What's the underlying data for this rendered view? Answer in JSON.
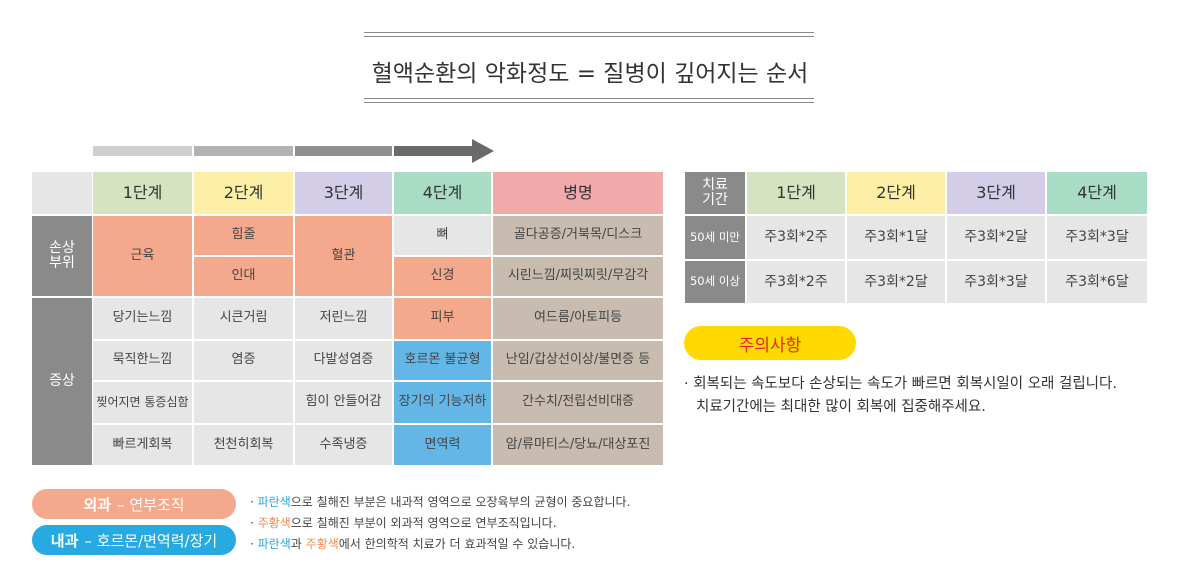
{
  "title": "혈액순환의 악화정도 = 질병이 깊어지는 순서",
  "left_table": {
    "stages": [
      "1단계",
      "2단계",
      "3단계",
      "4단계",
      "병명"
    ],
    "side": {
      "injury": "손상\n부위",
      "symptom": "증상"
    },
    "injury": {
      "muscle": "근육",
      "tendon": "힘줄",
      "ligament": "인대",
      "vessel": "혈관",
      "bone": "뼈",
      "nerve": "신경",
      "disease_1": "골다공증/거북목/디스크",
      "disease_2": "시린느낌/찌릿찌릿/무감각"
    },
    "rows": [
      [
        "당기는느낌",
        "시큰거림",
        "저린느낌",
        "피부",
        "여드름/아토피등"
      ],
      [
        "묵직한느낌",
        "염증",
        "다발성염증",
        "호르몬 불균형",
        "난임/갑상선이상/불면증 등"
      ],
      [
        "찢어지면 통증심함",
        "",
        "힘이 안들어감",
        "장기의 기능저하",
        "간수치/전립선비대증"
      ],
      [
        "빠르게회복",
        "천천히회복",
        "수족냉증",
        "면역력",
        "암/류마티스/당뇨/대상포진"
      ]
    ]
  },
  "right_table": {
    "header": [
      "치료\n기간",
      "1단계",
      "2단계",
      "3단계",
      "4단계"
    ],
    "rows": [
      [
        "50세 미만",
        "주3회*2주",
        "주3회*1달",
        "주3회*2달",
        "주3회*3달"
      ],
      [
        "50세 이상",
        "주3회*2주",
        "주3회*2달",
        "주3회*3달",
        "주3회*6달"
      ]
    ]
  },
  "notice": {
    "title": "주의사항",
    "line1": "· 회복되는 속도보다 손상되는 속도가 빠르면 회복시일이 오래 걸립니다.",
    "line2": "치료기간에는 최대한 많이 회복에 집중해주세요."
  },
  "legend": {
    "surgery_bold": "외과",
    "surgery_rest": "– 연부조직",
    "internal_bold": "내과",
    "internal_rest": "– 호르몬/면역력/장기",
    "note1_pre": "· ",
    "note1_blue": "파란색",
    "note1_post": "으로 칠해진 부분은 내과적 영역으로 오장육부의 균형이 중요합니다.",
    "note2_pre": "· ",
    "note2_orange": "주황색",
    "note2_post": "으로 칠해진 부분이 외과적 영역으로 연부조직입니다.",
    "note3_pre": "· ",
    "note3_blue": "파란색",
    "note3_mid": "과 ",
    "note3_orange": "주황색",
    "note3_post": "에서 한의학적 치료가 더 효과적일 수 있습니다."
  },
  "colors": {
    "stage1": "#d6e3c0",
    "stage2": "#fdf0a6",
    "stage3": "#d3cde8",
    "stage4": "#a8dcc5",
    "disease": "#f0aaaa",
    "salmon": "#f4a98c",
    "blue": "#64b6e6",
    "tan": "#c8bcb0",
    "gray": "#8a8a8a",
    "notice_pill": "#ffd900"
  }
}
